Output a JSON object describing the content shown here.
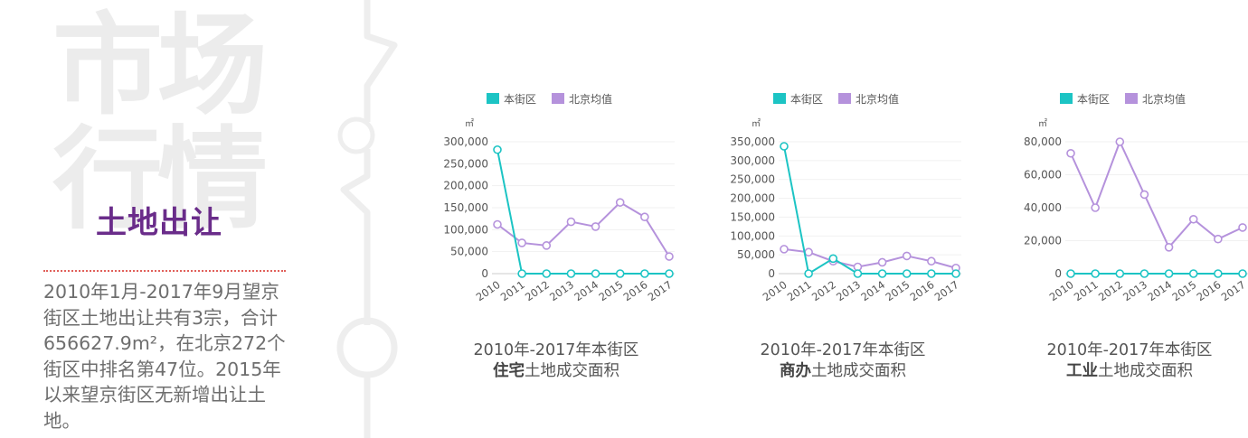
{
  "left": {
    "big_title_line1": "市场",
    "big_title_line2": "行情",
    "subtitle": "土地出让",
    "summary": "2010年1月-2017年9月望京街区土地出让共有3宗，合计656627.9m²，在北京272个街区中排名第47位。2015年以来望京街区无新增出让土地。"
  },
  "colors": {
    "local": "#1cc4c4",
    "beijing": "#b592dc",
    "accent_purple": "#6a2c8a",
    "dotted_red": "#e0605a"
  },
  "chart_data": [
    {
      "type": "line",
      "unit": "㎡",
      "categories": [
        "2010",
        "2011",
        "2012",
        "2013",
        "2014",
        "2015",
        "2016",
        "2017"
      ],
      "series": [
        {
          "name": "本街区",
          "values": [
            282000,
            0,
            0,
            0,
            0,
            0,
            0,
            0
          ]
        },
        {
          "name": "北京均值",
          "values": [
            112000,
            70000,
            64000,
            118000,
            107000,
            162000,
            129000,
            39000
          ]
        }
      ],
      "yticks": [
        "0",
        "50,000",
        "100,000",
        "150,000",
        "200,000",
        "250,000",
        "300,000"
      ],
      "ylim": [
        0,
        300000
      ],
      "caption_line1": "2010年-2017年本街区",
      "caption_bold": "住宅",
      "caption_rest": "土地成交面积"
    },
    {
      "type": "line",
      "unit": "㎡",
      "categories": [
        "2010",
        "2011",
        "2012",
        "2013",
        "2014",
        "2015",
        "2016",
        "2017"
      ],
      "series": [
        {
          "name": "本街区",
          "values": [
            338000,
            0,
            40000,
            0,
            0,
            0,
            0,
            0
          ]
        },
        {
          "name": "北京均值",
          "values": [
            65000,
            57000,
            33000,
            18000,
            30000,
            47000,
            33000,
            15000
          ]
        }
      ],
      "yticks": [
        "0",
        "50,000",
        "100,000",
        "150,000",
        "200,000",
        "250,000",
        "300,000",
        "350,000"
      ],
      "ylim": [
        0,
        350000
      ],
      "caption_line1": "2010年-2017年本街区",
      "caption_bold": "商办",
      "caption_rest": "土地成交面积"
    },
    {
      "type": "line",
      "unit": "㎡",
      "categories": [
        "2010",
        "2011",
        "2012",
        "2013",
        "2014",
        "2015",
        "2016",
        "2017"
      ],
      "series": [
        {
          "name": "本街区",
          "values": [
            0,
            0,
            0,
            0,
            0,
            0,
            0,
            0
          ]
        },
        {
          "name": "北京均值",
          "values": [
            73000,
            40000,
            80000,
            48000,
            16000,
            33000,
            21000,
            28000
          ]
        }
      ],
      "yticks": [
        "0",
        "20,000",
        "40,000",
        "60,000",
        "80,000"
      ],
      "ylim": [
        0,
        80000
      ],
      "caption_line1": "2010年-2017年本街区",
      "caption_bold": "工业",
      "caption_rest": "土地成交面积"
    }
  ]
}
